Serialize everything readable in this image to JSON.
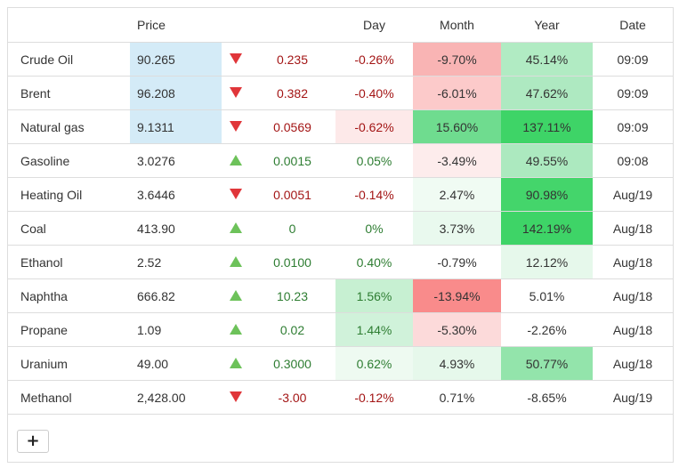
{
  "headers": {
    "name": "",
    "price": "Price",
    "arrow": "",
    "change": "",
    "day": "Day",
    "month": "Month",
    "year": "Year",
    "date": "Date"
  },
  "add_button_label": "+",
  "rows": [
    {
      "name": "Crude Oil",
      "price": "90.265",
      "price_highlight": true,
      "direction": "down",
      "change": "0.235",
      "day": "-0.26%",
      "month": "-9.70%",
      "year": "45.14%",
      "date": "09:09",
      "day_bg": "#ffffff",
      "month_bg": "#f9b4b4",
      "year_bg": "#b1ebc3"
    },
    {
      "name": "Brent",
      "price": "96.208",
      "price_highlight": true,
      "direction": "down",
      "change": "0.382",
      "day": "-0.40%",
      "month": "-6.01%",
      "year": "47.62%",
      "date": "09:09",
      "day_bg": "#ffffff",
      "month_bg": "#fccaca",
      "year_bg": "#aee9c1"
    },
    {
      "name": "Natural gas",
      "price": "9.1311",
      "price_highlight": true,
      "direction": "down",
      "change": "0.0569",
      "day": "-0.62%",
      "month": "15.60%",
      "year": "137.11%",
      "date": "09:09",
      "day_bg": "#fde9e9",
      "month_bg": "#6fdc8f",
      "year_bg": "#3ed467"
    },
    {
      "name": "Gasoline",
      "price": "3.0276",
      "price_highlight": false,
      "direction": "up",
      "change": "0.0015",
      "day": "0.05%",
      "month": "-3.49%",
      "year": "49.55%",
      "date": "09:08",
      "day_bg": "#ffffff",
      "month_bg": "#fdecec",
      "year_bg": "#ace9bf"
    },
    {
      "name": "Heating Oil",
      "price": "3.6446",
      "price_highlight": false,
      "direction": "down",
      "change": "0.0051",
      "day": "-0.14%",
      "month": "2.47%",
      "year": "90.98%",
      "date": "Aug/19",
      "day_bg": "#ffffff",
      "month_bg": "#f0fbf3",
      "year_bg": "#44d56b"
    },
    {
      "name": "Coal",
      "price": "413.90",
      "price_highlight": false,
      "direction": "up",
      "change": "0",
      "day": "0%",
      "month": "3.73%",
      "year": "142.19%",
      "date": "Aug/18",
      "day_bg": "#ffffff",
      "month_bg": "#e9f9ee",
      "year_bg": "#3ed467"
    },
    {
      "name": "Ethanol",
      "price": "2.52",
      "price_highlight": false,
      "direction": "up",
      "change": "0.0100",
      "day": "0.40%",
      "month": "-0.79%",
      "year": "12.12%",
      "date": "Aug/18",
      "day_bg": "#ffffff",
      "month_bg": "#ffffff",
      "year_bg": "#e6f8eb"
    },
    {
      "name": "Naphtha",
      "price": "666.82",
      "price_highlight": false,
      "direction": "up",
      "change": "10.23",
      "day": "1.56%",
      "month": "-13.94%",
      "year": "5.01%",
      "date": "Aug/18",
      "day_bg": "#c7f0d2",
      "month_bg": "#f98b8b",
      "year_bg": "#ffffff"
    },
    {
      "name": "Propane",
      "price": "1.09",
      "price_highlight": false,
      "direction": "up",
      "change": "0.02",
      "day": "1.44%",
      "month": "-5.30%",
      "year": "-2.26%",
      "date": "Aug/18",
      "day_bg": "#d0f2da",
      "month_bg": "#fcdada",
      "year_bg": "#ffffff"
    },
    {
      "name": "Uranium",
      "price": "49.00",
      "price_highlight": false,
      "direction": "up",
      "change": "0.3000",
      "day": "0.62%",
      "month": "4.93%",
      "year": "50.77%",
      "date": "Aug/18",
      "day_bg": "#eefaf1",
      "month_bg": "#e6f8eb",
      "year_bg": "#93e4ab"
    },
    {
      "name": "Methanol",
      "price": "2,428.00",
      "price_highlight": false,
      "direction": "down",
      "change": "-3.00",
      "day": "-0.12%",
      "month": "0.71%",
      "year": "-8.65%",
      "date": "Aug/19",
      "day_bg": "#ffffff",
      "month_bg": "#ffffff",
      "year_bg": "#ffffff"
    }
  ]
}
